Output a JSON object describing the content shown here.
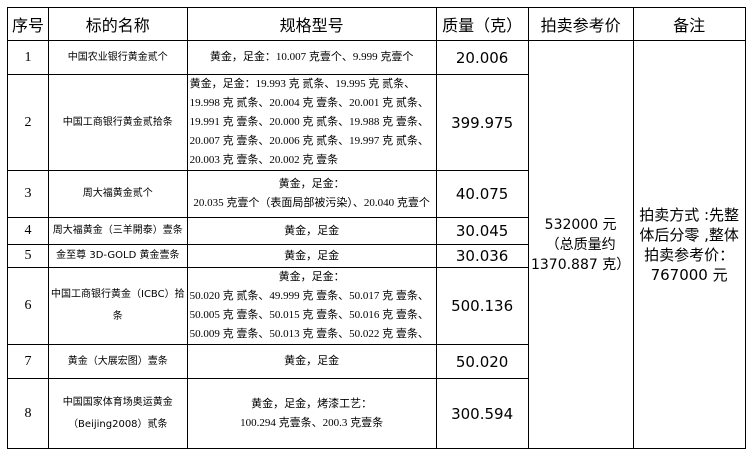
{
  "headers": [
    "序号",
    "标的名称",
    "规格型号",
    "质量（克）",
    "拍卖参考价",
    "备注"
  ],
  "rows": [
    {
      "no": "1",
      "name": [
        "中国农业银行黄金贰个"
      ],
      "spec": [
        "黄金，足金：10.007 克壹个、9.999 克壹个"
      ],
      "mass": "20.006"
    },
    {
      "no": "2",
      "name": [
        "中国工商银行黄金贰拾条"
      ],
      "spec": [
        "黄金，足金：19.993 克  贰条、19.995 克  贰条、",
        "19.998 克  贰条、20.004 克  壹条、20.001 克  贰条、",
        "19.991 克  壹条、20.000 克  贰条、19.988 克  壹条、",
        "20.007 克  壹条、20.006 克  贰条、19.997 克  贰条、",
        "20.003 克  壹条、20.002 克  壹条"
      ],
      "mass": "399.975"
    },
    {
      "no": "3",
      "name": [
        "周大福黄金贰个"
      ],
      "spec": [
        "黄金，足金：",
        "20.035 克壹个（表面局部被污染）、20.040 克壹个"
      ],
      "mass": "40.075"
    },
    {
      "no": "4",
      "name": [
        "周大福黄金（三羊開泰）壹条"
      ],
      "spec": [
        "黄金，足金"
      ],
      "mass": "30.045"
    },
    {
      "no": "5",
      "name": [
        "金至尊 3D-GOLD 黄金壹条"
      ],
      "spec": [
        "黄金，足金"
      ],
      "mass": "30.036"
    },
    {
      "no": "6",
      "name": [
        "中国工商银行黄金（ICBC）拾",
        "条"
      ],
      "spec": [
        "黄金，足金：",
        "50.020 克  贰条、49.999 克  壹条、50.017 克  壹条、",
        "50.005 克  壹条、50.015 克  壹条、50.016 克  壹条、",
        "50.009 克  壹条、50.013 克  壹条、50.022 克  壹条、"
      ],
      "mass": "500.136"
    },
    {
      "no": "7",
      "name": [
        "黄金（大展宏图）壹条"
      ],
      "spec": [
        "黄金，足金"
      ],
      "mass": "50.020"
    },
    {
      "no": "8",
      "name": [
        "中国国家体育场奥运黄金",
        "（Beijing2008）贰条"
      ],
      "spec": [
        "黄金，足金，烤漆工艺：",
        "100.294 克壹条、200.3 克壹条"
      ],
      "mass": "300.594"
    }
  ],
  "price": [
    "532000 元",
    "（总质量约",
    "1370.887 克）"
  ],
  "note": [
    "拍卖方式 :先整",
    "体后分零 ,整体",
    "拍卖参考价：",
    "767000 元"
  ]
}
